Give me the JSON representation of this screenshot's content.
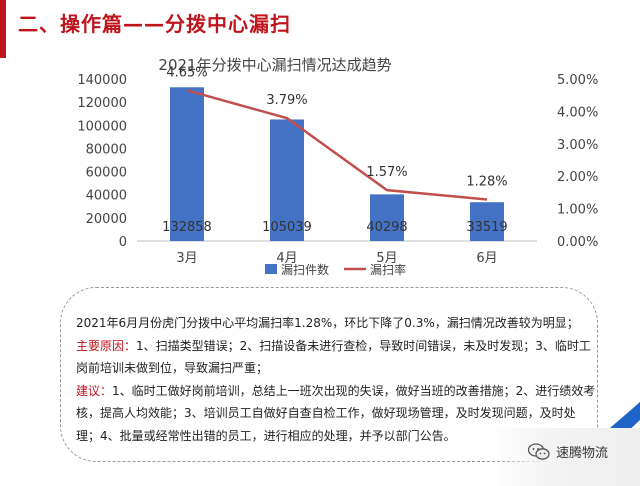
{
  "page": {
    "heading": "二、操作篇——分拨中心漏扫"
  },
  "chart_data": {
    "type": "bar",
    "title": "2021年分拨中心漏扫情况达成趋势",
    "categories": [
      "3月",
      "4月",
      "5月",
      "6月"
    ],
    "series": [
      {
        "name": "漏扫件数",
        "kind": "bar",
        "axis": "left",
        "color": "#4472c4",
        "values": [
          132858,
          105039,
          40298,
          33519
        ],
        "labels": [
          "132858",
          "105039",
          "40298",
          "33519"
        ]
      },
      {
        "name": "漏扫率",
        "kind": "line",
        "axis": "right",
        "color": "#c0504d",
        "values": [
          4.65,
          3.79,
          1.57,
          1.28
        ],
        "labels": [
          "4.65%",
          "3.79%",
          "1.57%",
          "1.28%"
        ]
      }
    ],
    "y_left": {
      "min": 0,
      "max": 140000,
      "ticks": [
        "0",
        "20000",
        "40000",
        "60000",
        "80000",
        "100000",
        "120000",
        "140000"
      ]
    },
    "y_right": {
      "min": 0,
      "max": 5,
      "ticks": [
        "0.00%",
        "1.00%",
        "2.00%",
        "3.00%",
        "4.00%",
        "5.00%"
      ]
    },
    "grid": false,
    "legend": "bottom"
  },
  "summary": {
    "line1": "2021年6月月份虎门分拨中心平均漏扫率1.28%，环比下降了0.3%，漏扫情况改善较为明显；",
    "cause_label": "主要原因：",
    "cause_text": "1、扫描类型错误；2、扫描设备未进行查检，导致时间错误，未及时发现；3、临时工岗前培训未做到位，导致漏扫严重；",
    "advice_label": "建议：",
    "advice_text": "1、临时工做好岗前培训，总结上一班次出现的失误，做好当班的改善措施；2、进行绩效考核，提高人均效能；3、培训员工自做好自查自检工作，做好现场管理，及时发现问题，及时处理；4、批量或经常性出错的员工，进行相应的处理，并予以部门公告。"
  },
  "watermark": {
    "text": "速腾物流",
    "icon": "wechat-icon",
    "logo_icon": "blue-swoosh-logo-icon"
  }
}
